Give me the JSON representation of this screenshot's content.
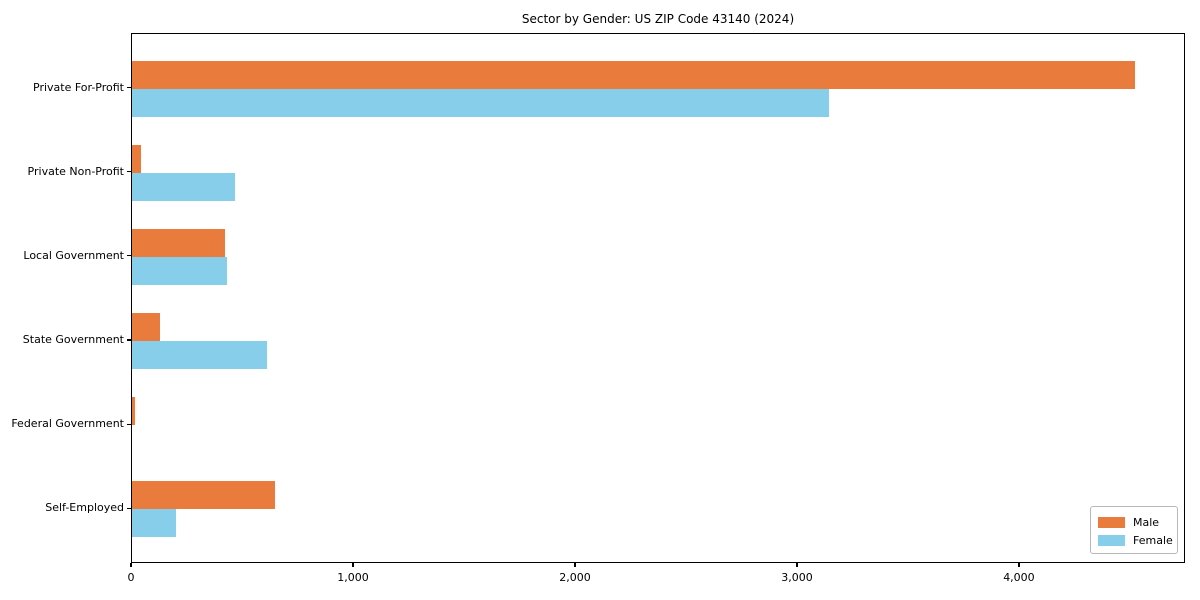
{
  "title": "Sector by Gender: US ZIP Code 43140 (2024)",
  "colors": {
    "male": "#E97C3C",
    "female": "#86CEE9",
    "axis": "#000000",
    "background": "#ffffff",
    "legend_border": "#b8b8b8"
  },
  "legend": {
    "position": "lower right",
    "entries": [
      {
        "label": "Male"
      },
      {
        "label": "Female"
      }
    ]
  },
  "chart_data": {
    "type": "bar",
    "orientation": "horizontal",
    "title": "Sector by Gender: US ZIP Code 43140 (2024)",
    "categories": [
      "Private For-Profit",
      "Private Non-Profit",
      "Local Government",
      "State Government",
      "Federal Government",
      "Self-Employed"
    ],
    "series": [
      {
        "name": "Male",
        "color": "#E97C3C",
        "values": [
          4520,
          40,
          420,
          125,
          15,
          645
        ]
      },
      {
        "name": "Female",
        "color": "#86CEE9",
        "values": [
          3140,
          465,
          430,
          610,
          0,
          200
        ]
      }
    ],
    "xlabel": "",
    "ylabel": "",
    "xlim": [
      0,
      4748
    ],
    "xticks": [
      0,
      1000,
      2000,
      3000,
      4000
    ],
    "xtick_labels": [
      "0",
      "1,000",
      "2,000",
      "3,000",
      "4,000"
    ],
    "grid": false,
    "legend_position": "lower right"
  }
}
